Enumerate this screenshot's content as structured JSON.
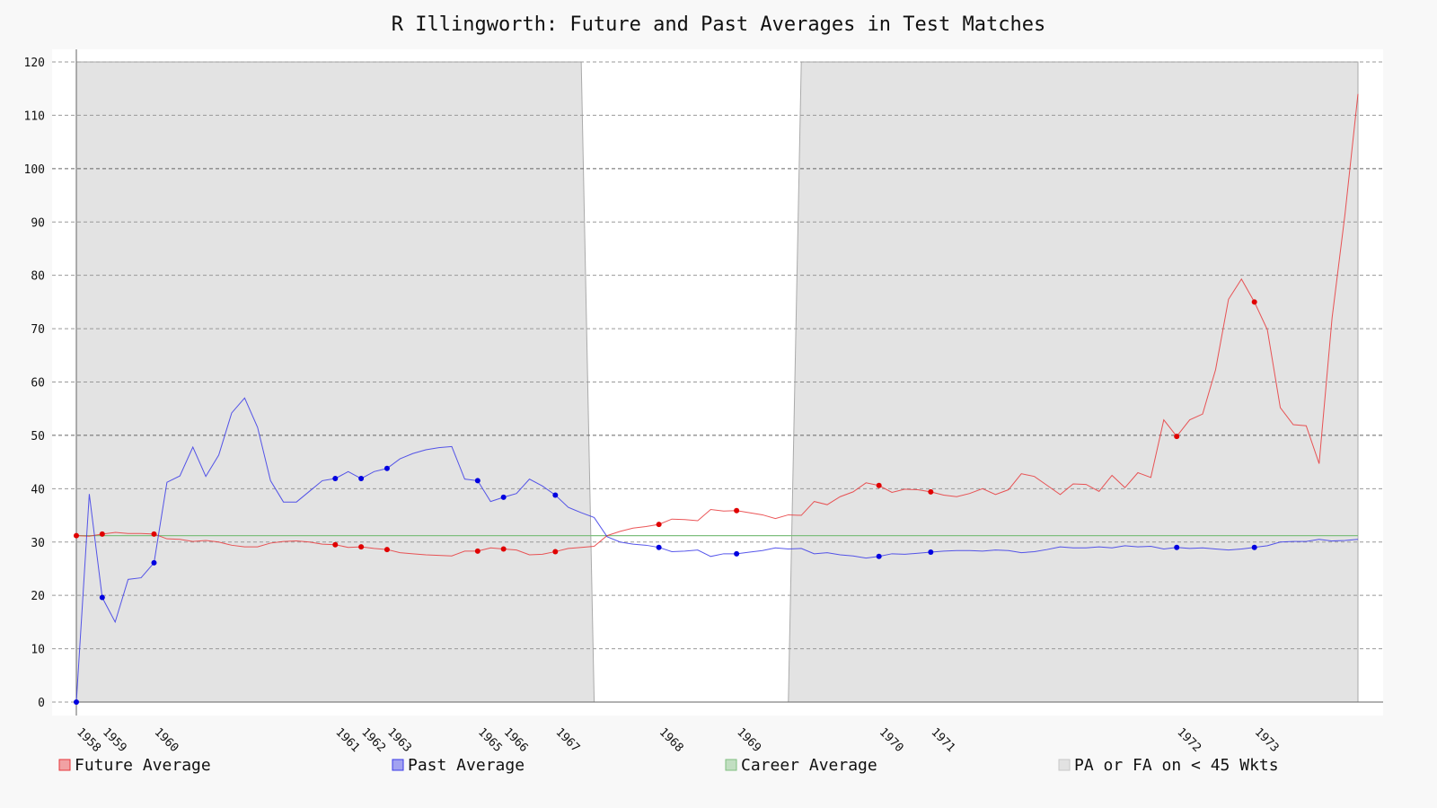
{
  "chart_data": {
    "type": "line",
    "title": "R Illingworth: Future and Past Averages in Test Matches",
    "categories": [
      "1958",
      null,
      "1959",
      null,
      null,
      null,
      "1960",
      null,
      null,
      null,
      null,
      null,
      null,
      null,
      null,
      null,
      null,
      null,
      null,
      null,
      "1961",
      null,
      "1962",
      null,
      "1963",
      null,
      null,
      null,
      null,
      null,
      null,
      "1965",
      null,
      "1966",
      null,
      null,
      null,
      "1967",
      null,
      null,
      null,
      null,
      null,
      null,
      null,
      "1968",
      null,
      null,
      null,
      null,
      null,
      "1969",
      null,
      null,
      null,
      null,
      null,
      null,
      null,
      null,
      null,
      null,
      "1970",
      null,
      null,
      null,
      "1971",
      null,
      null,
      null,
      null,
      null,
      null,
      null,
      null,
      null,
      null,
      null,
      null,
      null,
      null,
      null,
      null,
      null,
      null,
      "1972",
      null,
      null,
      null,
      null,
      null,
      "1973",
      null,
      null,
      null,
      null,
      null,
      null,
      null,
      null
    ],
    "series": [
      {
        "name": "Future Average",
        "color": "#e8383b",
        "values": [
          31.2,
          31.1,
          31.5,
          31.8,
          31.6,
          31.6,
          31.5,
          30.6,
          30.5,
          30.1,
          30.3,
          30,
          29.4,
          29.1,
          29.1,
          29.8,
          30.1,
          30.2,
          30,
          29.6,
          29.5,
          29,
          29.1,
          28.8,
          28.6,
          28,
          27.8,
          27.6,
          27.5,
          27.4,
          28.3,
          28.3,
          28.9,
          28.7,
          28.5,
          27.6,
          27.7,
          28.2,
          28.8,
          29,
          29.2,
          31.2,
          32,
          32.6,
          32.9,
          33.3,
          34.3,
          34.2,
          34,
          36.1,
          35.8,
          35.9,
          35.5,
          35.1,
          34.4,
          35.1,
          35,
          37.6,
          37,
          38.5,
          39.4,
          41.1,
          40.6,
          39.3,
          39.9,
          39.8,
          39.4,
          38.8,
          38.5,
          39.1,
          40,
          38.9,
          39.8,
          42.8,
          42.3,
          40.6,
          38.9,
          40.9,
          40.8,
          39.5,
          42.5,
          40.2,
          43,
          42.1,
          52.9,
          49.8,
          52.9,
          54,
          62.3,
          75.5,
          79.3,
          75,
          69.8,
          55.2,
          52,
          51.8,
          44.7,
          72,
          91.5,
          114
        ]
      },
      {
        "name": "Past Average",
        "color": "#3a3ae8",
        "values": [
          0,
          39,
          19.6,
          15,
          23,
          23.3,
          26.1,
          41.2,
          42.4,
          47.8,
          42.3,
          46.3,
          54.2,
          57,
          51.5,
          41.5,
          37.5,
          37.5,
          39.5,
          41.5,
          41.9,
          43.2,
          41.9,
          43.2,
          43.8,
          45.6,
          46.6,
          47.3,
          47.7,
          47.9,
          41.8,
          41.5,
          37.6,
          38.4,
          39.1,
          41.8,
          40.5,
          38.8,
          36.5,
          35.5,
          34.6,
          31,
          30,
          29.6,
          29.4,
          29,
          28.2,
          28.3,
          28.5,
          27.3,
          27.8,
          27.8,
          28.1,
          28.4,
          28.9,
          28.7,
          28.8,
          27.8,
          28,
          27.6,
          27.4,
          27,
          27.3,
          27.8,
          27.7,
          27.9,
          28.1,
          28.3,
          28.4,
          28.4,
          28.3,
          28.5,
          28.4,
          28,
          28.2,
          28.6,
          29.1,
          28.9,
          28.9,
          29.1,
          28.9,
          29.3,
          29.1,
          29.2,
          28.7,
          29,
          28.8,
          28.9,
          28.7,
          28.5,
          28.7,
          29,
          29.3,
          30,
          30.1,
          30.1,
          30.5,
          30.2,
          30.3,
          30.5
        ]
      }
    ],
    "hline": {
      "name": "Career Average",
      "color": "#7fbf7f",
      "value": 31.2
    },
    "shaded": {
      "name": "PA or FA on < 45 Wkts",
      "color": "#e3e3e3",
      "values": [
        120,
        120,
        120,
        120,
        120,
        120,
        120,
        120,
        120,
        120,
        120,
        120,
        120,
        120,
        120,
        120,
        120,
        120,
        120,
        120,
        120,
        120,
        120,
        120,
        120,
        120,
        120,
        120,
        120,
        120,
        120,
        120,
        120,
        120,
        120,
        120,
        120,
        120,
        120,
        120,
        0,
        0,
        0,
        0,
        0,
        0,
        0,
        0,
        0,
        0,
        0,
        0,
        0,
        0,
        0,
        0,
        120,
        120,
        120,
        120,
        120,
        120,
        120,
        120,
        120,
        120,
        120,
        120,
        120,
        120,
        120,
        120,
        120,
        120,
        120,
        120,
        120,
        120,
        120,
        120,
        120,
        120,
        120,
        120,
        120,
        120,
        120,
        120,
        120,
        120,
        120,
        120,
        120,
        120,
        120,
        120,
        120,
        120,
        120,
        120
      ]
    },
    "ylim": [
      0,
      120
    ],
    "yticks": [
      0,
      10,
      20,
      30,
      40,
      50,
      60,
      70,
      80,
      90,
      100,
      110,
      120
    ],
    "grid": true
  }
}
